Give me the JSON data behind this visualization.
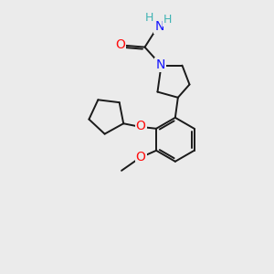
{
  "background_color": "#ebebeb",
  "bond_color": "#1a1a1a",
  "N_color": "#1414ff",
  "O_color": "#ff0d0d",
  "H_color": "#3fb3b3",
  "figsize": [
    3.0,
    3.0
  ],
  "dpi": 100,
  "xlim": [
    0,
    300
  ],
  "ylim": [
    0,
    300
  ]
}
